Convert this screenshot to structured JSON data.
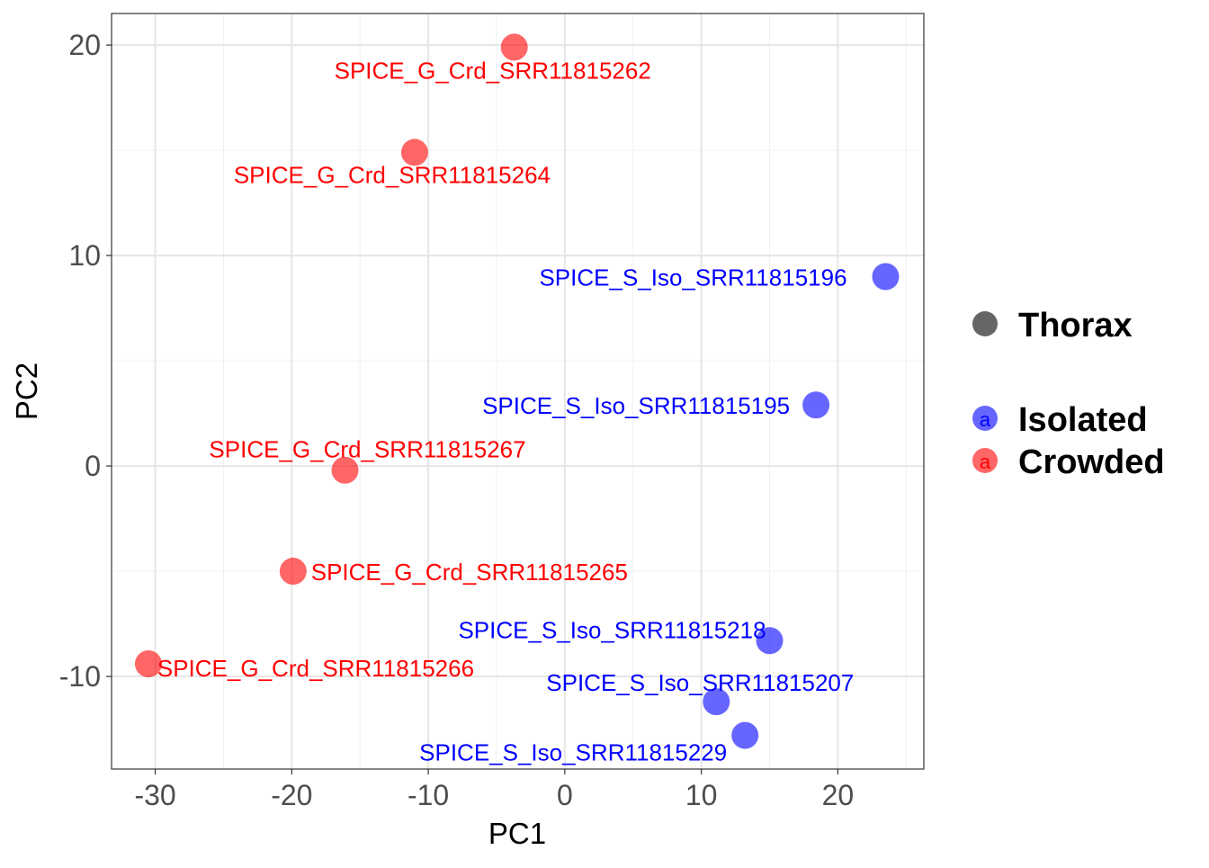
{
  "chart_data": {
    "type": "scatter",
    "title": "",
    "xlabel": "PC1",
    "ylabel": "PC2",
    "xlim": [
      -33.2,
      26.3
    ],
    "ylim": [
      -14.4,
      21.5
    ],
    "xticks": [
      -30,
      -20,
      -10,
      0,
      10,
      20
    ],
    "yticks": [
      -10,
      0,
      10,
      20
    ],
    "xtick_labels": [
      "-30",
      "-20",
      "-10",
      "0",
      "10",
      "20"
    ],
    "ytick_labels": [
      "-10",
      "0",
      "10",
      "20"
    ],
    "grid": true,
    "legend": {
      "placement": "right",
      "shape_title": "Thorax",
      "entries": [
        {
          "name": "Isolated",
          "color": "#0000FF",
          "glyph": "a"
        },
        {
          "name": "Crowded",
          "color": "#FF0000",
          "glyph": "a"
        }
      ]
    },
    "points": [
      {
        "label": "SPICE_G_Crd_SRR11815262",
        "group": "Crowded",
        "x": -3.7,
        "y": 19.9
      },
      {
        "label": "SPICE_G_Crd_SRR11815264",
        "group": "Crowded",
        "x": -11.0,
        "y": 14.9
      },
      {
        "label": "SPICE_S_Iso_SRR11815196",
        "group": "Isolated",
        "x": 23.5,
        "y": 9.0
      },
      {
        "label": "SPICE_S_Iso_SRR11815195",
        "group": "Isolated",
        "x": 18.4,
        "y": 2.9
      },
      {
        "label": "SPICE_G_Crd_SRR11815267",
        "group": "Crowded",
        "x": -16.1,
        "y": -0.2
      },
      {
        "label": "SPICE_G_Crd_SRR11815265",
        "group": "Crowded",
        "x": -19.9,
        "y": -5.0
      },
      {
        "label": "SPICE_S_Iso_SRR11815218",
        "group": "Isolated",
        "x": 15.0,
        "y": -8.3
      },
      {
        "label": "SPICE_G_Crd_SRR11815266",
        "group": "Crowded",
        "x": -30.5,
        "y": -9.4
      },
      {
        "label": "SPICE_S_Iso_SRR11815207",
        "group": "Isolated",
        "x": 11.1,
        "y": -11.2
      },
      {
        "label": "SPICE_S_Iso_SRR11815229",
        "group": "Isolated",
        "x": 13.2,
        "y": -12.8
      }
    ]
  }
}
